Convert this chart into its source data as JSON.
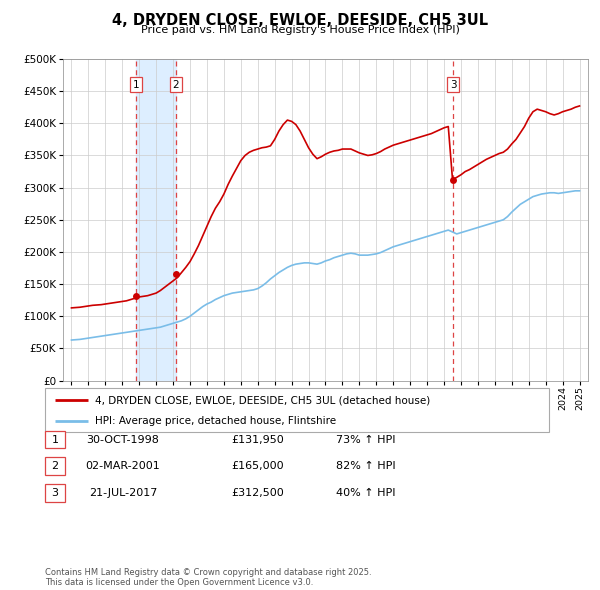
{
  "title": "4, DRYDEN CLOSE, EWLOE, DEESIDE, CH5 3UL",
  "subtitle": "Price paid vs. HM Land Registry's House Price Index (HPI)",
  "legend_entry1": "4, DRYDEN CLOSE, EWLOE, DEESIDE, CH5 3UL (detached house)",
  "legend_entry2": "HPI: Average price, detached house, Flintshire",
  "footer": "Contains HM Land Registry data © Crown copyright and database right 2025.\nThis data is licensed under the Open Government Licence v3.0.",
  "transactions": [
    {
      "num": 1,
      "date": "30-OCT-1998",
      "price": 131950,
      "pct": "73%",
      "year": 1998.83
    },
    {
      "num": 2,
      "date": "02-MAR-2001",
      "price": 165000,
      "pct": "82%",
      "year": 2001.17
    },
    {
      "num": 3,
      "date": "21-JUL-2017",
      "price": 312500,
      "pct": "40%",
      "year": 2017.54
    }
  ],
  "hpi_color": "#7abde8",
  "price_color": "#cc0000",
  "shade_color": "#ddeeff",
  "vline_color": "#dd4444",
  "ylim": [
    0,
    500000
  ],
  "yticks": [
    0,
    50000,
    100000,
    150000,
    200000,
    250000,
    300000,
    350000,
    400000,
    450000,
    500000
  ],
  "xlim_start": 1994.5,
  "xlim_end": 2025.5,
  "hpi_data": {
    "years": [
      1995.0,
      1995.25,
      1995.5,
      1995.75,
      1996.0,
      1996.25,
      1996.5,
      1996.75,
      1997.0,
      1997.25,
      1997.5,
      1997.75,
      1998.0,
      1998.25,
      1998.5,
      1998.75,
      1999.0,
      1999.25,
      1999.5,
      1999.75,
      2000.0,
      2000.25,
      2000.5,
      2000.75,
      2001.0,
      2001.25,
      2001.5,
      2001.75,
      2002.0,
      2002.25,
      2002.5,
      2002.75,
      2003.0,
      2003.25,
      2003.5,
      2003.75,
      2004.0,
      2004.25,
      2004.5,
      2004.75,
      2005.0,
      2005.25,
      2005.5,
      2005.75,
      2006.0,
      2006.25,
      2006.5,
      2006.75,
      2007.0,
      2007.25,
      2007.5,
      2007.75,
      2008.0,
      2008.25,
      2008.5,
      2008.75,
      2009.0,
      2009.25,
      2009.5,
      2009.75,
      2010.0,
      2010.25,
      2010.5,
      2010.75,
      2011.0,
      2011.25,
      2011.5,
      2011.75,
      2012.0,
      2012.25,
      2012.5,
      2012.75,
      2013.0,
      2013.25,
      2013.5,
      2013.75,
      2014.0,
      2014.25,
      2014.5,
      2014.75,
      2015.0,
      2015.25,
      2015.5,
      2015.75,
      2016.0,
      2016.25,
      2016.5,
      2016.75,
      2017.0,
      2017.25,
      2017.5,
      2017.75,
      2018.0,
      2018.25,
      2018.5,
      2018.75,
      2019.0,
      2019.25,
      2019.5,
      2019.75,
      2020.0,
      2020.25,
      2020.5,
      2020.75,
      2021.0,
      2021.25,
      2021.5,
      2021.75,
      2022.0,
      2022.25,
      2022.5,
      2022.75,
      2023.0,
      2023.25,
      2023.5,
      2023.75,
      2024.0,
      2024.25,
      2024.5,
      2024.75,
      2025.0
    ],
    "values": [
      63000,
      63500,
      64000,
      65000,
      66000,
      67000,
      68000,
      69000,
      70000,
      71000,
      72000,
      73000,
      74000,
      75000,
      76000,
      77000,
      78000,
      79000,
      80000,
      81000,
      82000,
      83000,
      85000,
      87000,
      89000,
      91000,
      93000,
      96000,
      100000,
      105000,
      110000,
      115000,
      119000,
      122000,
      126000,
      129000,
      132000,
      134000,
      136000,
      137000,
      138000,
      139000,
      140000,
      141000,
      143000,
      147000,
      152000,
      158000,
      163000,
      168000,
      172000,
      176000,
      179000,
      181000,
      182000,
      183000,
      183000,
      182000,
      181000,
      183000,
      186000,
      188000,
      191000,
      193000,
      195000,
      197000,
      198000,
      197000,
      195000,
      195000,
      195000,
      196000,
      197000,
      199000,
      202000,
      205000,
      208000,
      210000,
      212000,
      214000,
      216000,
      218000,
      220000,
      222000,
      224000,
      226000,
      228000,
      230000,
      232000,
      234000,
      231000,
      228000,
      230000,
      232000,
      234000,
      236000,
      238000,
      240000,
      242000,
      244000,
      246000,
      248000,
      250000,
      255000,
      262000,
      268000,
      274000,
      278000,
      282000,
      286000,
      288000,
      290000,
      291000,
      292000,
      292000,
      291000,
      292000,
      293000,
      294000,
      295000,
      295000
    ]
  },
  "price_data": {
    "years": [
      1995.0,
      1995.25,
      1995.5,
      1995.75,
      1996.0,
      1996.25,
      1996.5,
      1996.75,
      1997.0,
      1997.25,
      1997.5,
      1997.75,
      1998.0,
      1998.25,
      1998.5,
      1998.75,
      1999.0,
      1999.25,
      1999.5,
      1999.75,
      2000.0,
      2000.25,
      2000.5,
      2000.75,
      2001.0,
      2001.25,
      2001.5,
      2001.75,
      2002.0,
      2002.25,
      2002.5,
      2002.75,
      2003.0,
      2003.25,
      2003.5,
      2003.75,
      2004.0,
      2004.25,
      2004.5,
      2004.75,
      2005.0,
      2005.25,
      2005.5,
      2005.75,
      2006.0,
      2006.25,
      2006.5,
      2006.75,
      2007.0,
      2007.25,
      2007.5,
      2007.75,
      2008.0,
      2008.25,
      2008.5,
      2008.75,
      2009.0,
      2009.25,
      2009.5,
      2009.75,
      2010.0,
      2010.25,
      2010.5,
      2010.75,
      2011.0,
      2011.25,
      2011.5,
      2011.75,
      2012.0,
      2012.25,
      2012.5,
      2012.75,
      2013.0,
      2013.25,
      2013.5,
      2013.75,
      2014.0,
      2014.25,
      2014.5,
      2014.75,
      2015.0,
      2015.25,
      2015.5,
      2015.75,
      2016.0,
      2016.25,
      2016.5,
      2016.75,
      2017.0,
      2017.25,
      2017.5,
      2017.75,
      2018.0,
      2018.25,
      2018.5,
      2018.75,
      2019.0,
      2019.25,
      2019.5,
      2019.75,
      2020.0,
      2020.25,
      2020.5,
      2020.75,
      2021.0,
      2021.25,
      2021.5,
      2021.75,
      2022.0,
      2022.25,
      2022.5,
      2022.75,
      2023.0,
      2023.25,
      2023.5,
      2023.75,
      2024.0,
      2024.25,
      2024.5,
      2024.75,
      2025.0
    ],
    "values": [
      113000,
      113500,
      114000,
      115000,
      116000,
      117000,
      117500,
      118000,
      119000,
      120000,
      121000,
      122000,
      123000,
      124000,
      126000,
      128000,
      130000,
      131000,
      132000,
      134000,
      136000,
      140000,
      145000,
      150000,
      155000,
      160000,
      168000,
      176000,
      185000,
      197000,
      210000,
      225000,
      240000,
      255000,
      268000,
      278000,
      290000,
      305000,
      318000,
      330000,
      342000,
      350000,
      355000,
      358000,
      360000,
      362000,
      363000,
      365000,
      375000,
      388000,
      398000,
      405000,
      403000,
      398000,
      388000,
      375000,
      362000,
      352000,
      345000,
      348000,
      352000,
      355000,
      357000,
      358000,
      360000,
      360000,
      360000,
      357000,
      354000,
      352000,
      350000,
      351000,
      353000,
      356000,
      360000,
      363000,
      366000,
      368000,
      370000,
      372000,
      374000,
      376000,
      378000,
      380000,
      382000,
      384000,
      387000,
      390000,
      393000,
      395000,
      312500,
      316000,
      320000,
      325000,
      328000,
      332000,
      336000,
      340000,
      344000,
      347000,
      350000,
      353000,
      355000,
      360000,
      368000,
      375000,
      385000,
      395000,
      408000,
      418000,
      422000,
      420000,
      418000,
      415000,
      413000,
      415000,
      418000,
      420000,
      422000,
      425000,
      427000
    ]
  }
}
